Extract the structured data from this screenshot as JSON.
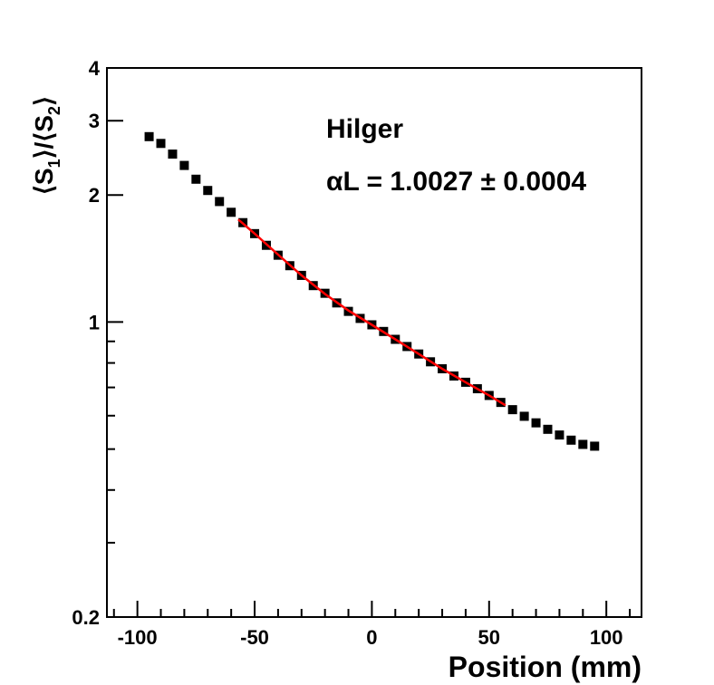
{
  "chart_data": {
    "type": "scatter",
    "title": "",
    "xlabel": "Position (mm)",
    "ylabel": "⟨S1⟩/⟨S2⟩",
    "ylabel_parts": {
      "open1": "⟨S",
      "sub1": "1",
      "close1": "⟩/⟨S",
      "sub2": "2",
      "close2": "⟩"
    },
    "xlim": [
      -113,
      115
    ],
    "ylim": [
      0.2,
      4
    ],
    "yscale": "log",
    "grid": false,
    "x_ticks": [
      {
        "value": -100,
        "label": "-100"
      },
      {
        "value": -50,
        "label": "-50"
      },
      {
        "value": 0,
        "label": "0"
      },
      {
        "value": 50,
        "label": "50"
      },
      {
        "value": 100,
        "label": "100"
      }
    ],
    "y_ticks": [
      {
        "value": 0.2,
        "label": "0.2"
      },
      {
        "value": 1,
        "label": "1"
      },
      {
        "value": 2,
        "label": "2"
      },
      {
        "value": 3,
        "label": "3"
      },
      {
        "value": 4,
        "label": "4"
      }
    ],
    "annotations": {
      "name": "Hilger",
      "fit_result": "αL = 1.0027 ± 0.0004"
    },
    "series": [
      {
        "marker": "square",
        "color": "#000000",
        "x": [
          -95,
          -90,
          -85,
          -80,
          -75,
          -70,
          -65,
          -60,
          -55,
          -50,
          -45,
          -40,
          -35,
          -30,
          -25,
          -20,
          -15,
          -10,
          -5,
          0,
          5,
          10,
          15,
          20,
          25,
          30,
          35,
          40,
          45,
          50,
          55,
          60,
          65,
          70,
          75,
          80,
          85,
          90,
          95
        ],
        "y": [
          2.75,
          2.65,
          2.5,
          2.35,
          2.18,
          2.05,
          1.93,
          1.82,
          1.72,
          1.62,
          1.52,
          1.44,
          1.36,
          1.29,
          1.22,
          1.17,
          1.11,
          1.06,
          1.02,
          0.985,
          0.95,
          0.91,
          0.875,
          0.84,
          0.805,
          0.775,
          0.745,
          0.72,
          0.695,
          0.67,
          0.645,
          0.62,
          0.598,
          0.577,
          0.557,
          0.54,
          0.525,
          0.513,
          0.508
        ]
      }
    ],
    "fit_line": {
      "color": "#ff0000",
      "x": [
        -57,
        -50,
        -40,
        -30,
        -20,
        -10,
        0,
        10,
        20,
        30,
        40,
        50,
        57
      ],
      "y": [
        1.75,
        1.62,
        1.445,
        1.29,
        1.165,
        1.065,
        0.985,
        0.91,
        0.84,
        0.775,
        0.72,
        0.67,
        0.635
      ]
    }
  }
}
